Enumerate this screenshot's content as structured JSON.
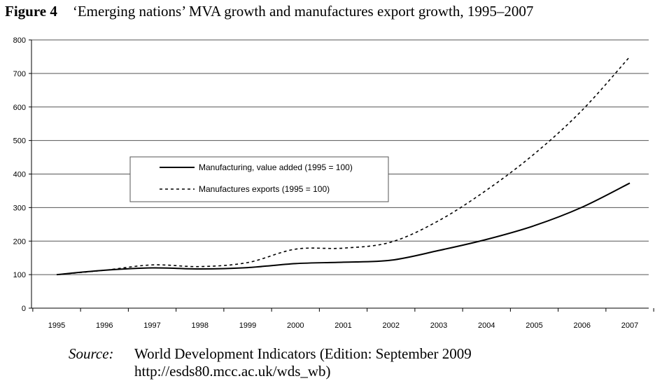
{
  "figure": {
    "label": "Figure 4",
    "title": "‘Emerging nations’ MVA growth and manufactures export growth, 1995–2007"
  },
  "source": {
    "label": "Source:",
    "text": "World Development Indicators (Edition: September 2009",
    "url": "http://esds80.mcc.ac.uk/wds_wb)"
  },
  "chart_data": {
    "type": "line",
    "x": [
      "1995",
      "1996",
      "1997",
      "1998",
      "1999",
      "2000",
      "2001",
      "2002",
      "2003",
      "2004",
      "2005",
      "2006",
      "2007"
    ],
    "ylim": [
      0,
      800
    ],
    "yticks": [
      0,
      100,
      200,
      300,
      400,
      500,
      600,
      700,
      800
    ],
    "grid": "horizontal",
    "legend_position": "center-left",
    "series": [
      {
        "name": "Manufacturing, value added (1995 = 100)",
        "style": "solid",
        "color": "#000000",
        "values": [
          100,
          113,
          120,
          117,
          121,
          133,
          137,
          143,
          172,
          205,
          246,
          301,
          373
        ]
      },
      {
        "name": "Manufactures exports (1995 = 100)",
        "style": "dashed",
        "color": "#000000",
        "values": [
          100,
          113,
          129,
          124,
          136,
          176,
          179,
          197,
          261,
          352,
          460,
          590,
          750
        ]
      }
    ]
  }
}
